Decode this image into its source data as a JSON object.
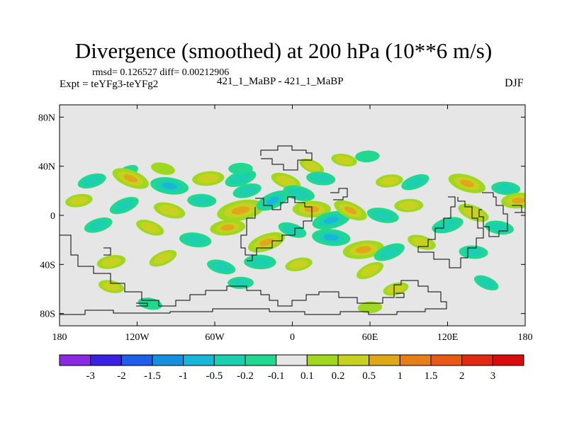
{
  "chart_data": {
    "type": "heatmap",
    "title": "Divergence (smoothed) at 200 hPa (10**6 m/s)",
    "stats_text": "rmsd= 0.126527 diff= 0.00212906",
    "left_label": "Expt = teYFg3-teYFg2",
    "center_label": "421_1_MaBP - 421_1_MaBP",
    "right_label": "DJF",
    "x_axis": {
      "range": [
        -180,
        180
      ],
      "ticks": [
        -180,
        -120,
        -60,
        0,
        60,
        120,
        180
      ],
      "tick_labels": [
        "180",
        "120W",
        "60W",
        "0",
        "60E",
        "120E",
        "180"
      ]
    },
    "y_axis": {
      "range": [
        -90,
        90
      ],
      "ticks": [
        80,
        40,
        0,
        -40,
        -80
      ],
      "tick_labels": [
        "80N",
        "40N",
        "0",
        "40S",
        "80S"
      ]
    },
    "colorbar": {
      "levels": [
        "-3",
        "-2",
        "-1.5",
        "-1",
        "-0.5",
        "-0.2",
        "-0.1",
        "0.1",
        "0.2",
        "0.5",
        "1",
        "1.5",
        "2",
        "3"
      ],
      "colors": [
        "#8a2be2",
        "#3a22e0",
        "#1e5ee8",
        "#1490e0",
        "#18b6d8",
        "#1ccfb0",
        "#20d890",
        "#e6e6e6",
        "#a0d820",
        "#c8d020",
        "#e0a818",
        "#e87e18",
        "#e85a14",
        "#e02a10",
        "#d80c0c"
      ]
    },
    "field_background": "#e6e6e6",
    "anomalies": [
      {
        "lon": -128,
        "lat": 35,
        "value": -0.15
      },
      {
        "lon": -100,
        "lat": 38,
        "value": 0.15
      },
      {
        "lon": -40,
        "lat": 38,
        "value": -0.15
      },
      {
        "lon": -35,
        "lat": 20,
        "value": -0.3
      },
      {
        "lon": 15,
        "lat": 40,
        "value": 0.2
      },
      {
        "lon": 40,
        "lat": 45,
        "value": 0.2
      },
      {
        "lon": 58,
        "lat": 48,
        "value": -0.15
      },
      {
        "lon": -155,
        "lat": 28,
        "value": -0.3
      },
      {
        "lon": -125,
        "lat": 30,
        "value": 0.6
      },
      {
        "lon": -95,
        "lat": 24,
        "value": -0.6
      },
      {
        "lon": -65,
        "lat": 30,
        "value": 0.4
      },
      {
        "lon": -40,
        "lat": 30,
        "value": -0.4
      },
      {
        "lon": -5,
        "lat": 28,
        "value": 0.35
      },
      {
        "lon": 22,
        "lat": 30,
        "value": -0.3
      },
      {
        "lon": 75,
        "lat": 28,
        "value": 0.25
      },
      {
        "lon": 95,
        "lat": 27,
        "value": -0.3
      },
      {
        "lon": 135,
        "lat": 26,
        "value": 0.6
      },
      {
        "lon": 165,
        "lat": 22,
        "value": -0.3
      },
      {
        "lon": -165,
        "lat": 12,
        "value": 0.25
      },
      {
        "lon": -130,
        "lat": 8,
        "value": -0.35
      },
      {
        "lon": -95,
        "lat": 4,
        "value": 0.4
      },
      {
        "lon": -70,
        "lat": 12,
        "value": -0.3
      },
      {
        "lon": -40,
        "lat": 4,
        "value": 0.9
      },
      {
        "lon": -15,
        "lat": 12,
        "value": -0.5
      },
      {
        "lon": 5,
        "lat": 18,
        "value": -0.4
      },
      {
        "lon": 15,
        "lat": 5,
        "value": 0.6
      },
      {
        "lon": 30,
        "lat": -4,
        "value": -0.6
      },
      {
        "lon": 45,
        "lat": 4,
        "value": 0.5
      },
      {
        "lon": 70,
        "lat": 0,
        "value": -0.4
      },
      {
        "lon": 90,
        "lat": 8,
        "value": 0.3
      },
      {
        "lon": 120,
        "lat": -8,
        "value": -0.4
      },
      {
        "lon": 140,
        "lat": 2,
        "value": 0.4
      },
      {
        "lon": 160,
        "lat": -10,
        "value": -0.3
      },
      {
        "lon": 175,
        "lat": 12,
        "value": 0.5
      },
      {
        "lon": -150,
        "lat": -8,
        "value": -0.3
      },
      {
        "lon": -110,
        "lat": -10,
        "value": 0.3
      },
      {
        "lon": -75,
        "lat": -20,
        "value": -0.4
      },
      {
        "lon": -50,
        "lat": -10,
        "value": 0.5
      },
      {
        "lon": -20,
        "lat": -22,
        "value": 0.6
      },
      {
        "lon": 0,
        "lat": -12,
        "value": -0.3
      },
      {
        "lon": 30,
        "lat": -18,
        "value": -0.6
      },
      {
        "lon": 55,
        "lat": -28,
        "value": 0.7
      },
      {
        "lon": 75,
        "lat": -30,
        "value": -0.4
      },
      {
        "lon": 100,
        "lat": -22,
        "value": 0.3
      },
      {
        "lon": 140,
        "lat": -30,
        "value": -0.3
      },
      {
        "lon": -140,
        "lat": -38,
        "value": 0.3
      },
      {
        "lon": -100,
        "lat": -35,
        "value": 0.3
      },
      {
        "lon": -55,
        "lat": -42,
        "value": -0.3
      },
      {
        "lon": -25,
        "lat": -38,
        "value": -0.4
      },
      {
        "lon": 5,
        "lat": -40,
        "value": 0.25
      },
      {
        "lon": 60,
        "lat": -45,
        "value": 0.3
      },
      {
        "lon": -140,
        "lat": -58,
        "value": 0.2
      },
      {
        "lon": -40,
        "lat": -55,
        "value": -0.2
      },
      {
        "lon": 80,
        "lat": -60,
        "value": 0.2
      },
      {
        "lon": 150,
        "lat": -55,
        "value": -0.2
      },
      {
        "lon": -110,
        "lat": -72,
        "value": -0.15
      },
      {
        "lon": 60,
        "lat": -75,
        "value": 0.15
      }
    ]
  }
}
